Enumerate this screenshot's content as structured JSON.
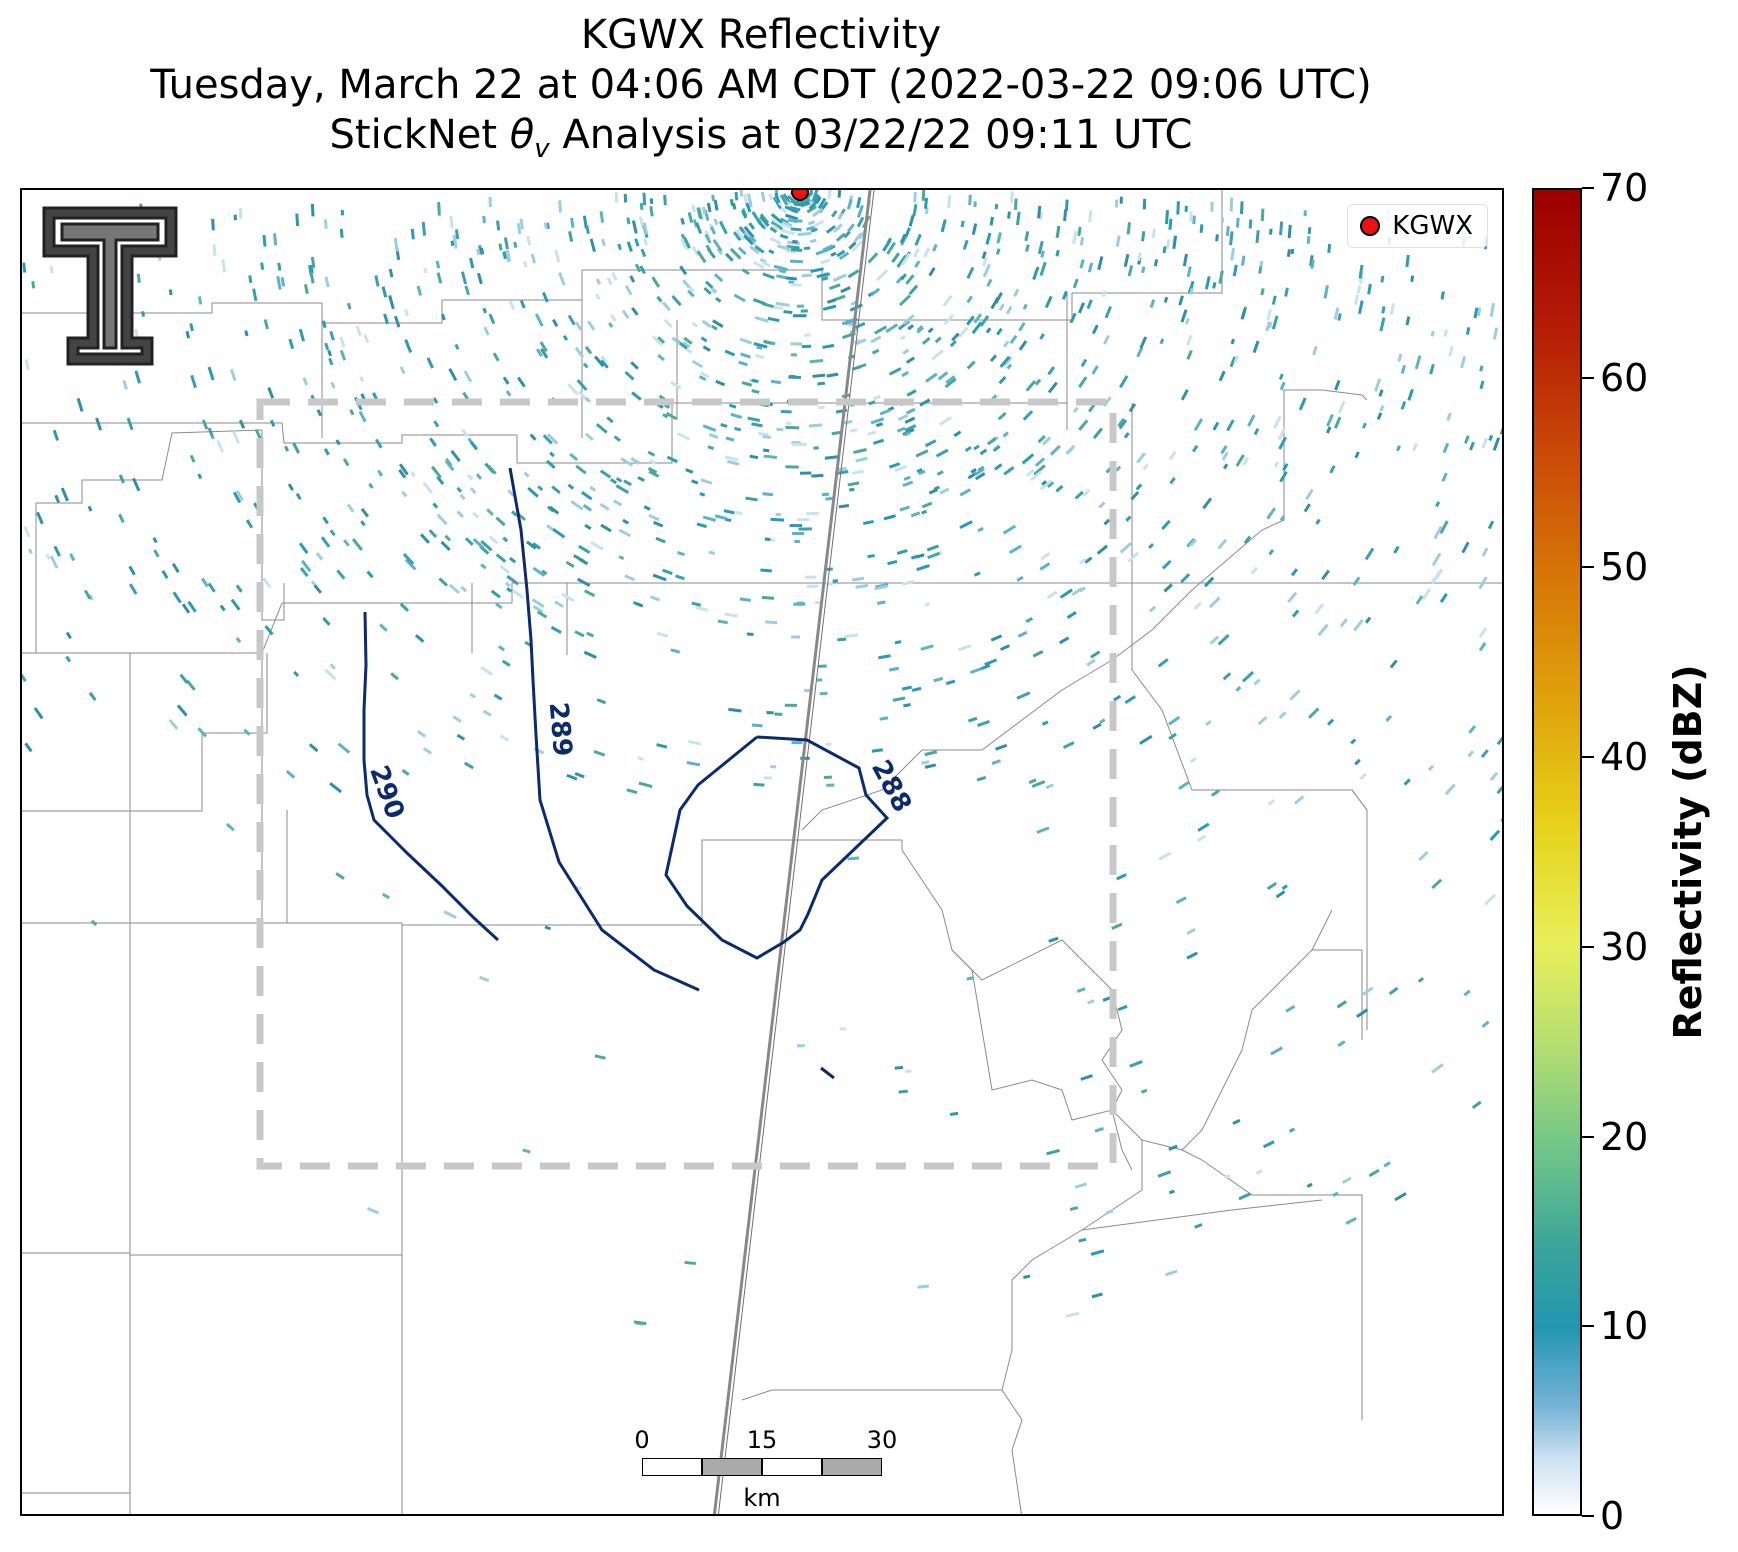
{
  "title": {
    "line1": "KGWX Reflectivity",
    "line2": "Tuesday, March 22 at 04:06 AM CDT (2022-03-22 09:06 UTC)",
    "line3_pre": "StickNet ",
    "line3_symbol": "θ",
    "line3_sub": "v",
    "line3_post": " Analysis at 03/22/22 09:11 UTC"
  },
  "legend": {
    "label": "KGWX",
    "marker_color": "#ee1111"
  },
  "contours": [
    {
      "value": "290",
      "label": "290"
    },
    {
      "value": "289",
      "label": "289"
    },
    {
      "value": "288",
      "label": "288"
    }
  ],
  "contour_color": "#0c2a6e",
  "scalebar": {
    "ticks": [
      "0",
      "15",
      "30"
    ],
    "unit": "km"
  },
  "colorbar": {
    "title": "Reflectivity (dBZ)",
    "ticks": [
      "0",
      "10",
      "20",
      "30",
      "40",
      "50",
      "60",
      "70"
    ],
    "min": 0,
    "max": 70
  },
  "logo": {
    "name": "Texas Tech double-T logo"
  }
}
